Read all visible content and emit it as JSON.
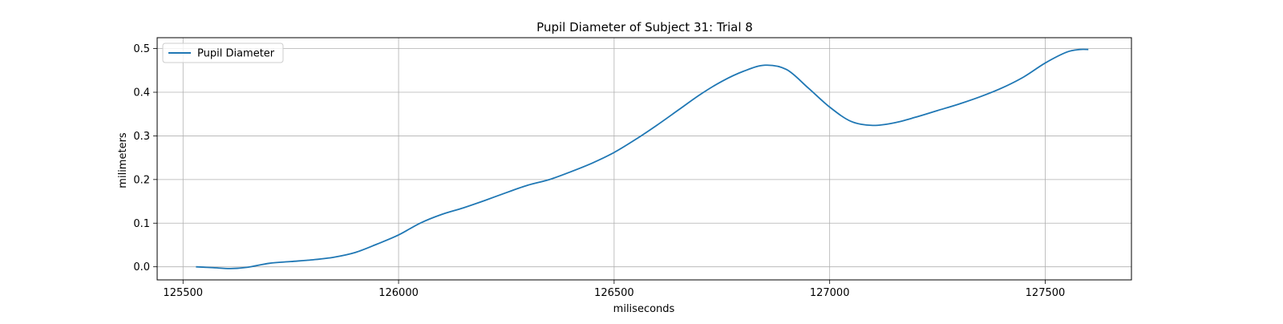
{
  "chart_data": {
    "type": "line",
    "title": "Pupil Diameter of Subject 31: Trial 8",
    "xlabel": "miliseconds",
    "ylabel": "milimeters",
    "xlim": [
      125440,
      127700
    ],
    "ylim": [
      -0.03,
      0.525
    ],
    "xticks": [
      125500,
      126000,
      126500,
      127000,
      127500
    ],
    "yticks": [
      0.0,
      0.1,
      0.2,
      0.3,
      0.4,
      0.5
    ],
    "ytick_labels": [
      "0.0",
      "0.1",
      "0.2",
      "0.3",
      "0.4",
      "0.5"
    ],
    "grid": true,
    "legend_position": "top-left",
    "series": [
      {
        "name": "Pupil Diameter",
        "color": "#1f77b4",
        "x": [
          125530,
          125570,
          125610,
          125650,
          125700,
          125750,
          125800,
          125850,
          125900,
          125950,
          126000,
          126050,
          126100,
          126150,
          126200,
          126250,
          126300,
          126350,
          126400,
          126450,
          126500,
          126550,
          126600,
          126650,
          126700,
          126750,
          126800,
          126850,
          126900,
          126950,
          127000,
          127050,
          127100,
          127150,
          127200,
          127250,
          127300,
          127350,
          127400,
          127450,
          127500,
          127550,
          127580,
          127600
        ],
        "values": [
          0.0,
          -0.002,
          -0.004,
          -0.001,
          0.008,
          0.012,
          0.016,
          0.022,
          0.033,
          0.052,
          0.073,
          0.1,
          0.12,
          0.135,
          0.152,
          0.17,
          0.187,
          0.2,
          0.218,
          0.238,
          0.262,
          0.292,
          0.325,
          0.36,
          0.395,
          0.425,
          0.448,
          0.462,
          0.452,
          0.41,
          0.366,
          0.333,
          0.324,
          0.33,
          0.343,
          0.358,
          0.373,
          0.39,
          0.41,
          0.435,
          0.467,
          0.492,
          0.498,
          0.498
        ]
      }
    ]
  }
}
